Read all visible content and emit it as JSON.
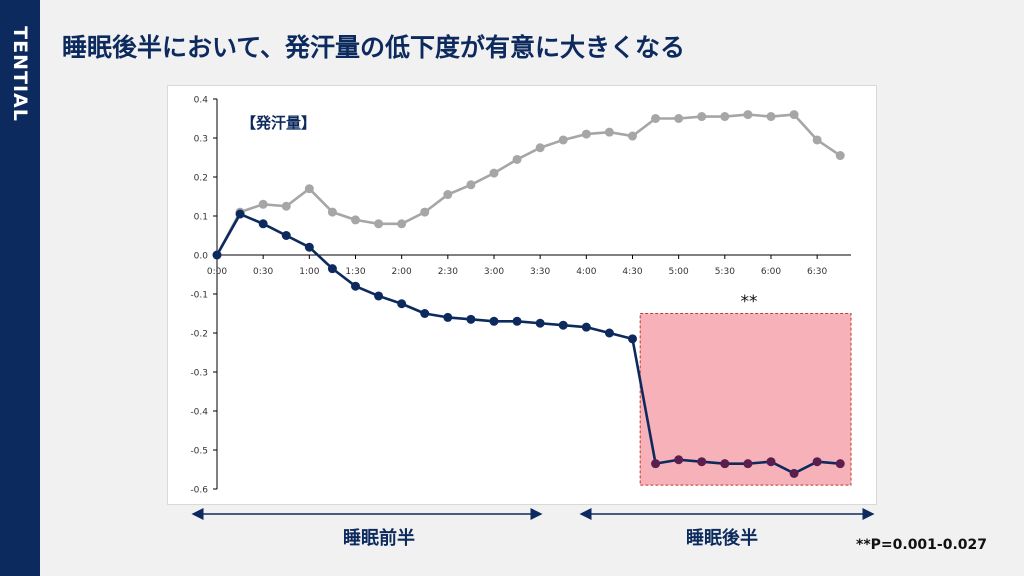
{
  "brand": "TENTIAL",
  "title": "睡眠後半において、発汗量の低下度が有意に大きくなる",
  "phases": {
    "first": "睡眠前半",
    "second": "睡眠後半"
  },
  "footnote": "**P=0.001-0.027",
  "colors": {
    "sidebar": "#0d2a5e",
    "series_gray": "#a6a6a6",
    "series_navy": "#0d2a5e",
    "highlight": "#f6a8b0"
  },
  "chart_data": {
    "type": "line",
    "title": "【発汗量】",
    "significance": "**",
    "x_tick_labels": [
      "0:00",
      "0:30",
      "1:00",
      "1:30",
      "2:00",
      "2:30",
      "3:00",
      "3:30",
      "4:00",
      "4:30",
      "5:00",
      "5:30",
      "6:00",
      "6:30"
    ],
    "x": [
      0,
      15,
      30,
      45,
      60,
      75,
      90,
      105,
      120,
      135,
      150,
      165,
      180,
      195,
      210,
      225,
      240,
      255,
      270,
      285,
      300,
      315,
      330,
      345,
      360,
      375,
      390,
      405
    ],
    "xlim": [
      0,
      412
    ],
    "ylim": [
      -0.6,
      0.4
    ],
    "y_ticks": [
      "0.4",
      "0.3",
      "0.2",
      "0.1",
      "0.0",
      "-0.1",
      "-0.2",
      "-0.3",
      "-0.4",
      "-0.5",
      "-0.6"
    ],
    "grid": false,
    "highlight_region": {
      "x_start": 275,
      "x_end": 412,
      "y_start": -0.15,
      "y_end": -0.59
    },
    "series": [
      {
        "values": [
          0,
          0.11,
          0.13,
          0.125,
          0.17,
          0.11,
          0.09,
          0.08,
          0.08,
          0.11,
          0.155,
          0.18,
          0.21,
          0.245,
          0.275,
          0.295,
          0.31,
          0.315,
          0.305,
          0.35,
          0.35,
          0.355,
          0.355,
          0.36,
          0.355,
          0.36,
          0.295,
          0.255
        ]
      },
      {
        "values": [
          0,
          0.105,
          0.08,
          0.05,
          0.02,
          -0.035,
          -0.08,
          -0.105,
          -0.125,
          -0.15,
          -0.16,
          -0.165,
          -0.17,
          -0.17,
          -0.175,
          -0.18,
          -0.185,
          -0.2,
          -0.215,
          -0.535,
          -0.525,
          -0.53,
          -0.535,
          -0.535,
          -0.53,
          -0.56,
          -0.53,
          -0.535
        ]
      }
    ]
  }
}
